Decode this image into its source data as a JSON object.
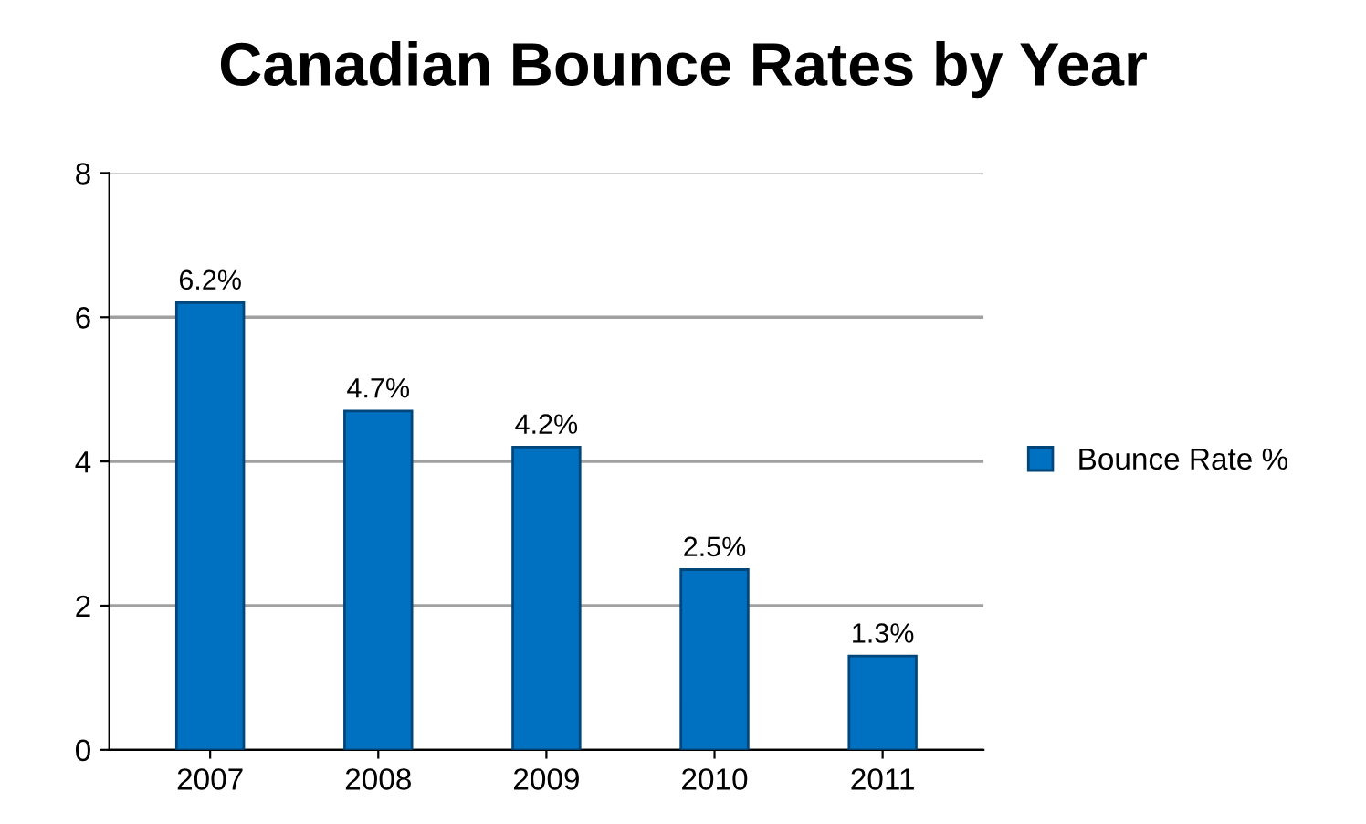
{
  "chart_data": {
    "type": "bar",
    "title": "Canadian Bounce Rates by Year",
    "categories": [
      "2007",
      "2008",
      "2009",
      "2010",
      "2011"
    ],
    "series": [
      {
        "name": "Bounce Rate %",
        "color": "#0070c0",
        "values": [
          6.2,
          4.7,
          4.2,
          2.5,
          1.3
        ],
        "value_labels": [
          "6.2%",
          "4.7%",
          "4.2%",
          "2.5%",
          "1.3%"
        ]
      }
    ],
    "ylim": [
      0,
      8
    ],
    "yticks": [
      0,
      2,
      4,
      6,
      8
    ],
    "grid": "y",
    "legend": "right"
  }
}
